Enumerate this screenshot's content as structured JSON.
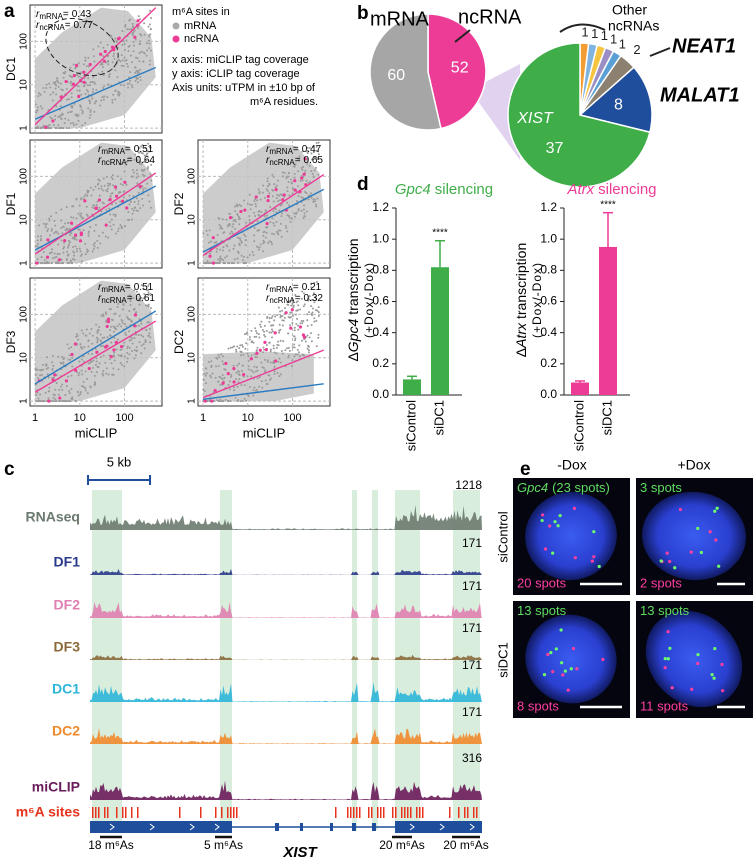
{
  "panel_labels": [
    "a",
    "b",
    "c",
    "d",
    "e"
  ],
  "scatter": {
    "legend_title": "m⁶A sites in",
    "groups": [
      {
        "name": "mRNA",
        "color": "#a9a9a9"
      },
      {
        "name": "ncRNA",
        "color": "#ec3c96"
      }
    ],
    "notes": [
      "x axis: miCLIP tag coverage",
      "y axis: iCLIP tag coverage",
      "Axis units: uTPM in ±10 bp of",
      "m⁶A residues."
    ],
    "stat_symbol": "r",
    "stat_sep": "=",
    "xlabel": "miCLIP",
    "log_scale": true,
    "lim": [
      0.77,
      690
    ],
    "ticks": [
      1,
      10,
      100
    ],
    "plots": [
      {
        "ylabel": "DC1",
        "r": [
          0.43,
          0.77
        ]
      },
      {
        "ylabel": "DF1",
        "r": [
          0.51,
          0.64
        ]
      },
      {
        "ylabel": "DF2",
        "r": [
          0.47,
          0.65
        ]
      },
      {
        "ylabel": "DF3",
        "r": [
          0.51,
          0.61
        ]
      },
      {
        "ylabel": "DC2",
        "r": [
          0.21,
          0.32
        ]
      }
    ]
  },
  "chart_data": [
    {
      "type": "pie",
      "categories": [
        "mRNA",
        "ncRNA"
      ],
      "values": [
        60,
        52
      ],
      "colors": [
        "#a6a6a6",
        "#ec3c96"
      ]
    },
    {
      "type": "pie",
      "group_label": [
        "Other",
        "ncRNAs"
      ],
      "categories": [
        null,
        null,
        null,
        null,
        null,
        "NEAT1",
        "MALAT1",
        "XIST"
      ],
      "values": [
        1,
        1,
        1,
        1,
        1,
        2,
        8,
        37
      ],
      "colors": [
        "#f39c34",
        "#7fb3e0",
        "#f5c542",
        "#9b8ec4",
        "#5aa0d6",
        "#8c8170",
        "#1f4e9c",
        "#3fae49"
      ]
    },
    {
      "type": "bar",
      "title_gene": "Gpc4",
      "title": "silencing",
      "title_color": "#3fae49",
      "ylabel": {
        "prefix": "Δ",
        "gene": "Gpc4",
        "suffix": "transcription"
      },
      "ylabel2": "(+Dox/-Dox)",
      "categories": [
        "siControl",
        "siDC1"
      ],
      "values": [
        0.1,
        0.82
      ],
      "errors": [
        0.02,
        0.17
      ],
      "annotations": [
        null,
        "****"
      ],
      "color": "#3fae49",
      "ylim": [
        0,
        1.2
      ],
      "yticks": [
        {
          "value": 0,
          "label": "0.0"
        },
        0.2,
        0.4,
        0.6,
        0.8,
        {
          "value": 1,
          "label": "1.0"
        },
        1.2
      ]
    },
    {
      "type": "bar",
      "title_gene": "Atrx",
      "title": "silencing",
      "title_color": "#ec3c96",
      "ylabel": {
        "prefix": "Δ",
        "gene": "Atrx",
        "suffix": "transcription"
      },
      "ylabel2": "(+Dox/-Dox)",
      "categories": [
        "siControl",
        "siDC1"
      ],
      "values": [
        0.08,
        0.95
      ],
      "errors": [
        0.01,
        0.22
      ],
      "annotations": [
        null,
        "****"
      ],
      "color": "#ec3c96",
      "ylim": [
        0,
        1.2
      ],
      "yticks": [
        {
          "value": 0,
          "label": "0.0"
        },
        0.2,
        0.4,
        0.6,
        0.8,
        {
          "value": 1,
          "label": "1.0"
        },
        1.2
      ]
    }
  ],
  "tracks": {
    "scale_bar": "5 kb",
    "rows": [
      {
        "name": "RNAseq",
        "max": 1218,
        "color": "#6b7a6e"
      },
      {
        "name": "DF1",
        "max": 171,
        "color": "#2a3a8c"
      },
      {
        "name": "DF2",
        "max": 171,
        "color": "#e07fb0"
      },
      {
        "name": "DF3",
        "max": 171,
        "color": "#8a6a3a"
      },
      {
        "name": "DC1",
        "max": 171,
        "color": "#2bb5d8"
      },
      {
        "name": "DC2",
        "max": 171,
        "color": "#f08a2c"
      },
      {
        "name": "miCLIP",
        "max": 316,
        "color": "#6a1b5a"
      }
    ],
    "sites_label": "m⁶A sites",
    "gene": "XIST",
    "clusters": [
      "18 m⁶As",
      "5 m⁶As",
      "20 m⁶As",
      "20 m⁶As"
    ]
  },
  "microscopy": {
    "columns": [
      "-Dox",
      "+Dox"
    ],
    "rows": [
      "siControl",
      "siDC1"
    ],
    "gene": "Gpc4",
    "panels": [
      {
        "green": "(23 spots)",
        "magenta": "20 spots"
      },
      {
        "green": "3 spots",
        "magenta": "2 spots"
      },
      {
        "green": "13 spots",
        "magenta": "8 spots"
      },
      {
        "green": "13 spots",
        "magenta": "11 spots"
      }
    ]
  }
}
